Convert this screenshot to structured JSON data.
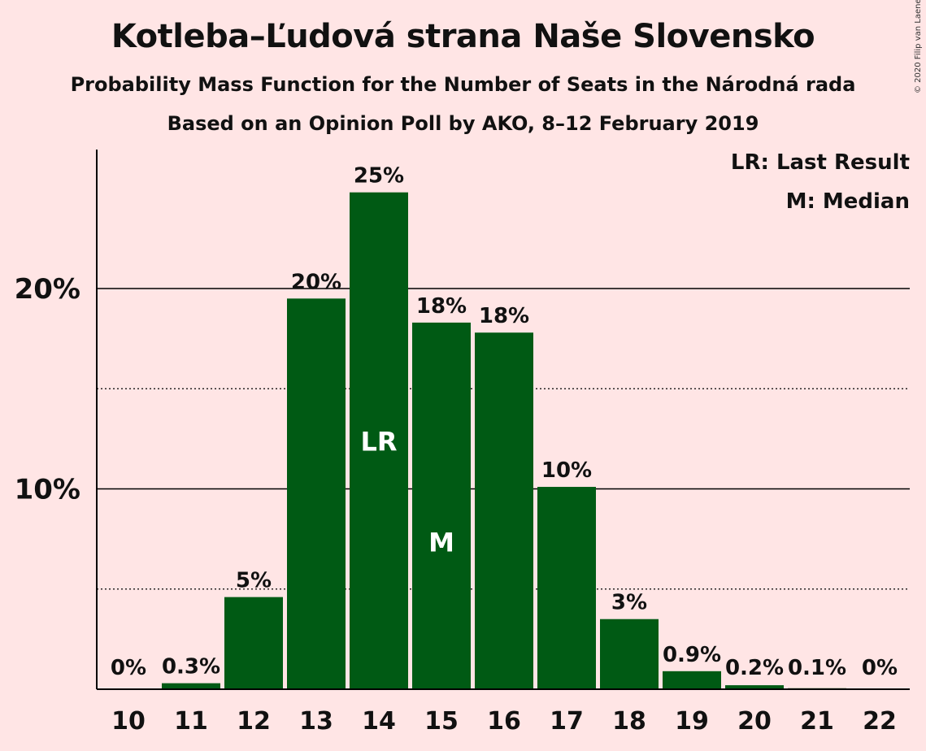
{
  "header": {
    "title": "Kotleba–Ľudová strana Naše Slovensko",
    "subtitle": "Probability Mass Function for the Number of Seats in the Národná rada",
    "subtitle2": "Based on an Opinion Poll by AKO, 8–12 February 2019",
    "copyright": "© 2020 Filip van Laenen"
  },
  "legend": {
    "last_result": "LR: Last Result",
    "median": "M: Median"
  },
  "colors": {
    "background": "#ffe5e5",
    "bar": "#005a14",
    "text": "#111111"
  },
  "chart_data": {
    "type": "bar",
    "categories": [
      "10",
      "11",
      "12",
      "13",
      "14",
      "15",
      "16",
      "17",
      "18",
      "19",
      "20",
      "21",
      "22"
    ],
    "values": [
      0,
      0.3,
      4.6,
      19.5,
      24.8,
      18.3,
      17.8,
      10.1,
      3.5,
      0.9,
      0.2,
      0.05,
      0
    ],
    "data_labels": [
      "0%",
      "0.3%",
      "5%",
      "20%",
      "25%",
      "18%",
      "18%",
      "10%",
      "3%",
      "0.9%",
      "0.2%",
      "0.1%",
      "0%"
    ],
    "bar_markers": [
      {
        "category": "14",
        "label": "LR"
      },
      {
        "category": "15",
        "label": "M"
      }
    ],
    "ylim": [
      0,
      27
    ],
    "y_major_ticks": [
      10,
      20
    ],
    "y_tick_labels": [
      "10%",
      "20%"
    ],
    "y_minor_ticks": [
      5,
      15
    ],
    "grid": true,
    "legend_position": "top-right"
  }
}
